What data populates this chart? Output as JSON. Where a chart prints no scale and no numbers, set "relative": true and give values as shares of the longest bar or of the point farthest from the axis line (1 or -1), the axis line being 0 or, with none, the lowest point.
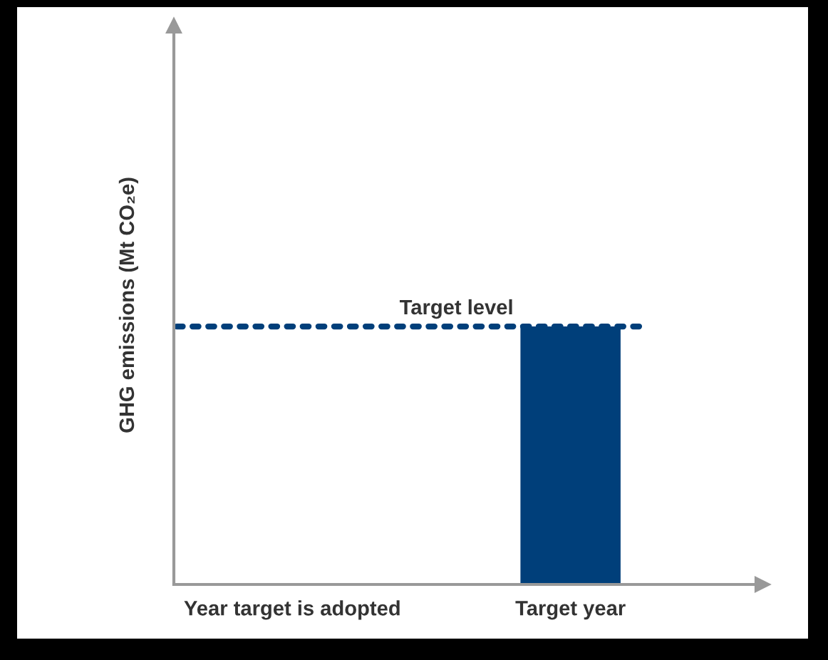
{
  "chart_data": {
    "type": "bar",
    "relative": true,
    "ylabel": "GHG emissions (Mt CO₂e)",
    "categories": [
      "Year target is adopted",
      "Target year"
    ],
    "series": [
      {
        "color": "#003f7a",
        "values": [
          null,
          1
        ]
      }
    ],
    "ref_lines": [
      {
        "axis": "y",
        "value": 1,
        "label": "Target level",
        "color": "#003f7a",
        "line_style": "dotted"
      }
    ],
    "grid": false,
    "legend": false
  }
}
